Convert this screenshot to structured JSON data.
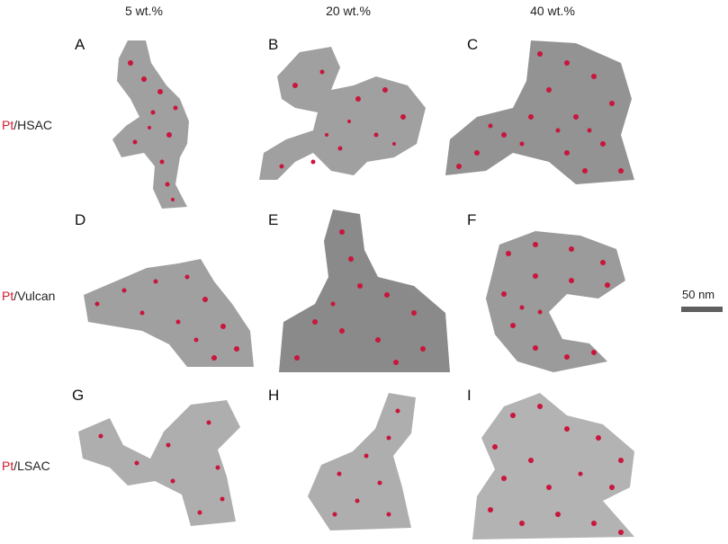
{
  "columns": [
    "5 wt.%",
    "20 wt.%",
    "40 wt.%"
  ],
  "rows": [
    {
      "prefix": "Pt",
      "suffix": "/HSAC"
    },
    {
      "prefix": "Pt",
      "suffix": "/Vulcan"
    },
    {
      "prefix": "Pt",
      "suffix": "/LSAC"
    }
  ],
  "panels": [
    "A",
    "B",
    "C",
    "D",
    "E",
    "F",
    "G",
    "H",
    "I"
  ],
  "scale_bar": {
    "label": "50 nm"
  },
  "colors": {
    "particle": "#c8163c",
    "support": "#8f8f8f",
    "label_accent": "#d01c2c"
  }
}
